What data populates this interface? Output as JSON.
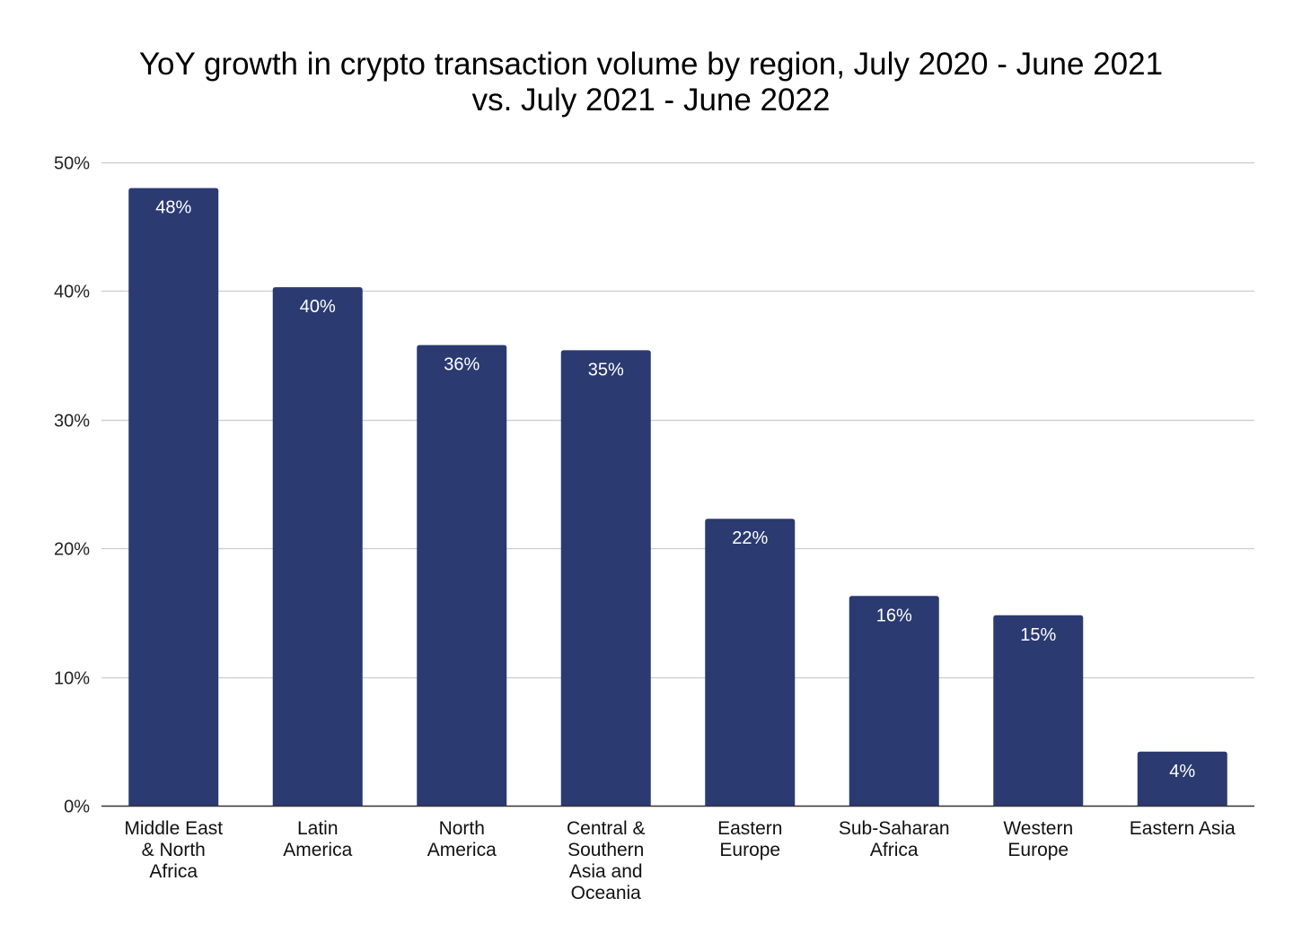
{
  "chart_data": {
    "type": "bar",
    "title": "YoY growth in crypto transaction volume by region, July 2020 - June 2021 vs. July 2021 - June 2022",
    "title_lines": [
      "YoY growth in crypto transaction volume by region, July 2020 - June 2021",
      "vs. July 2021 - June 2022"
    ],
    "categories": [
      "Middle East & North Africa",
      "Latin America",
      "North America",
      "Central & Southern Asia and Oceania",
      "Eastern Europe",
      "Sub-Saharan Africa",
      "Western Europe",
      "Eastern Asia"
    ],
    "category_label_lines": [
      [
        "Middle East",
        "& North",
        "Africa"
      ],
      [
        "Latin",
        "America"
      ],
      [
        "North",
        "America"
      ],
      [
        "Central &",
        "Southern",
        "Asia and",
        "Oceania"
      ],
      [
        "Eastern",
        "Europe"
      ],
      [
        "Sub-Saharan",
        "Africa"
      ],
      [
        "Western",
        "Europe"
      ],
      [
        "Eastern Asia"
      ]
    ],
    "values": [
      48,
      40.3,
      35.8,
      35.4,
      22.3,
      16.3,
      14.8,
      4.2
    ],
    "data_labels": [
      "48%",
      "40%",
      "36%",
      "35%",
      "22%",
      "16%",
      "15%",
      "4%"
    ],
    "xlabel": "",
    "ylabel": "",
    "ylim": [
      0,
      50
    ],
    "yticks": [
      0,
      10,
      20,
      30,
      40,
      50
    ],
    "ytick_labels": [
      "0%",
      "10%",
      "20%",
      "30%",
      "40%",
      "50%"
    ],
    "grid": true,
    "legend": "none",
    "colors": {
      "bar": "#2b3a71",
      "grid": "#cccccc",
      "axis": "#333333",
      "data_label": "#ffffff"
    }
  }
}
